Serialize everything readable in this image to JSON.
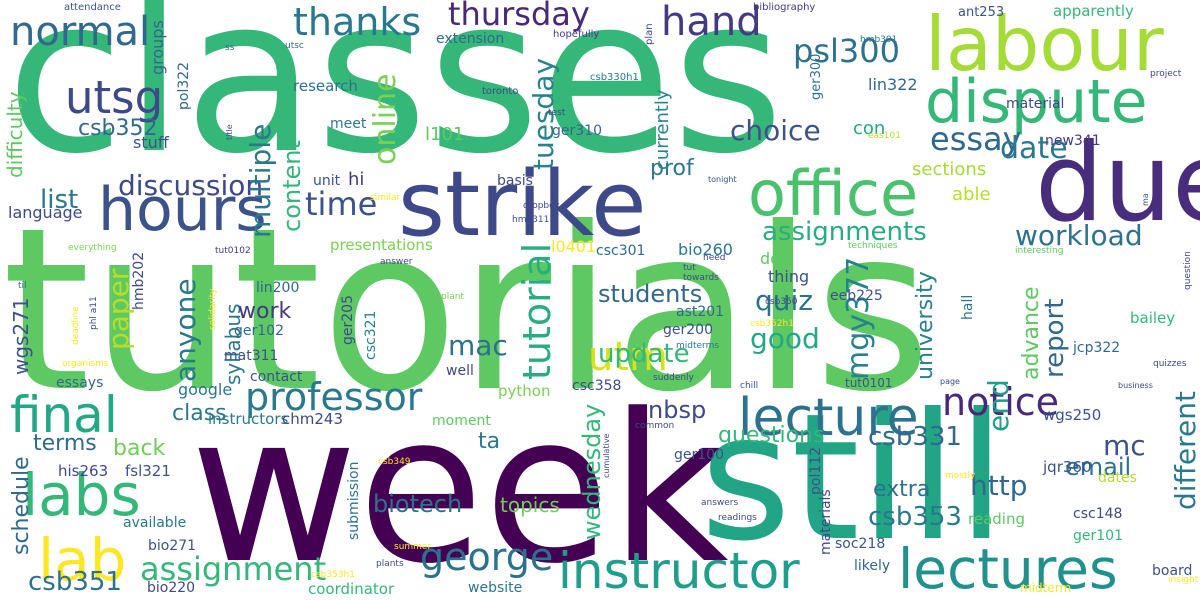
{
  "wordcloud": {
    "palette": [
      "#440154",
      "#482878",
      "#3e4989",
      "#31688e",
      "#26828e",
      "#1f9e89",
      "#35b779",
      "#6ece58",
      "#b5de2b",
      "#fde725"
    ],
    "words": [
      {
        "text": "classes",
        "color": "#35b779"
      },
      {
        "text": "tutorials",
        "color": "#5ec962"
      },
      {
        "text": "week",
        "color": "#440154"
      },
      {
        "text": "still",
        "color": "#21a585"
      },
      {
        "text": "strike",
        "color": "#3e4989"
      },
      {
        "text": "due",
        "color": "#472d7b"
      },
      {
        "text": "labour",
        "color": "#a5db36"
      },
      {
        "text": "dispute",
        "color": "#35b779"
      },
      {
        "text": "office",
        "color": "#4ac16d"
      },
      {
        "text": "hours",
        "color": "#3b528b"
      },
      {
        "text": "lecture",
        "color": "#2c728e"
      },
      {
        "text": "lectures",
        "color": "#21918c"
      },
      {
        "text": "instructor",
        "color": "#1f9e89"
      },
      {
        "text": "labs",
        "color": "#35b779"
      },
      {
        "text": "lab",
        "color": "#fde725"
      },
      {
        "text": "final",
        "color": "#22a884"
      },
      {
        "text": "normal",
        "color": "#31688e"
      },
      {
        "text": "utsg",
        "color": "#3e4989"
      },
      {
        "text": "thursday",
        "color": "#482878"
      },
      {
        "text": "thanks",
        "color": "#2a788e"
      },
      {
        "text": "hand",
        "color": "#443983"
      },
      {
        "text": "psl300",
        "color": "#2c728e"
      },
      {
        "text": "professor",
        "color": "#2a788e"
      },
      {
        "text": "george",
        "color": "#2c728e"
      },
      {
        "text": "assignment",
        "color": "#35b779"
      },
      {
        "text": "notice",
        "color": "#482878"
      },
      {
        "text": "choice",
        "color": "#3b528b"
      },
      {
        "text": "essay",
        "color": "#31688e"
      },
      {
        "text": "date",
        "color": "#2a788e"
      },
      {
        "text": "online",
        "color": "#7ad151"
      },
      {
        "text": "tuesday",
        "color": "#26828e"
      },
      {
        "text": "tutorial",
        "color": "#27ad81"
      },
      {
        "text": "utm",
        "color": "#d8e219"
      },
      {
        "text": "discussion",
        "color": "#3e4989"
      },
      {
        "text": "multiple",
        "color": "#2a788e"
      },
      {
        "text": "content",
        "color": "#35b779"
      },
      {
        "text": "time",
        "color": "#3b528b"
      },
      {
        "text": "assignments",
        "color": "#27ad81"
      },
      {
        "text": "workload",
        "color": "#2c728e"
      },
      {
        "text": "anyone",
        "color": "#2a788e"
      },
      {
        "text": "paper",
        "color": "#b5de2b"
      },
      {
        "text": "mac",
        "color": "#2c728e"
      },
      {
        "text": "quiz",
        "color": "#2c728e"
      },
      {
        "text": "good",
        "color": "#22a884"
      },
      {
        "text": "update",
        "color": "#35b779"
      },
      {
        "text": "students",
        "color": "#31688e"
      },
      {
        "text": "report",
        "color": "#31688e"
      },
      {
        "text": "mgy377",
        "color": "#26828e"
      },
      {
        "text": "university",
        "color": "#26828e"
      },
      {
        "text": "advance",
        "color": "#5ec962"
      },
      {
        "text": "end",
        "color": "#1f9e89"
      },
      {
        "text": "different",
        "color": "#2a788e"
      },
      {
        "text": "csb352",
        "color": "#31688e"
      },
      {
        "text": "list",
        "color": "#2a788e"
      },
      {
        "text": "csb331",
        "color": "#31688e"
      },
      {
        "text": "csb353",
        "color": "#2a788e"
      },
      {
        "text": "csb351",
        "color": "#2c728e"
      },
      {
        "text": "http",
        "color": "#31688e"
      },
      {
        "text": "email",
        "color": "#2c728e"
      },
      {
        "text": "extra",
        "color": "#2c728e"
      },
      {
        "text": "mc",
        "color": "#3b528b"
      },
      {
        "text": "wednesday",
        "color": "#35b779"
      },
      {
        "text": "questions",
        "color": "#35b779"
      },
      {
        "text": "nbsp",
        "color": "#3e4989"
      },
      {
        "text": "ta",
        "color": "#2a788e"
      },
      {
        "text": "biotech",
        "color": "#2c728e"
      },
      {
        "text": "topics",
        "color": "#6ece58"
      },
      {
        "text": "schedule",
        "color": "#31688e"
      },
      {
        "text": "terms",
        "color": "#31688e"
      },
      {
        "text": "back",
        "color": "#6ece58"
      },
      {
        "text": "class",
        "color": "#2a788e"
      },
      {
        "text": "syllabus",
        "color": "#2a788e"
      },
      {
        "text": "work",
        "color": "#443983"
      },
      {
        "text": "difficulty",
        "color": "#5ec962"
      },
      {
        "text": "wgs271",
        "color": "#3b528b"
      },
      {
        "text": "language",
        "color": "#3e4989"
      },
      {
        "text": "sections",
        "color": "#a5db36"
      },
      {
        "text": "prof",
        "color": "#2a788e"
      },
      {
        "text": "currently",
        "color": "#26828e"
      },
      {
        "text": "able",
        "color": "#b5de2b"
      },
      {
        "text": "con",
        "color": "#22a884"
      },
      {
        "text": "new341",
        "color": "#443983"
      },
      {
        "text": "lin322",
        "color": "#31688e"
      },
      {
        "text": "ger310",
        "color": "#31688e"
      },
      {
        "text": "l101",
        "color": "#5ec962"
      },
      {
        "text": "groups",
        "color": "#31688e"
      },
      {
        "text": "pol322",
        "color": "#31688e"
      },
      {
        "text": "research",
        "color": "#2c728e"
      },
      {
        "text": "meet",
        "color": "#2a788e"
      },
      {
        "text": "stuff",
        "color": "#3b528b"
      },
      {
        "text": "unit",
        "color": "#3b528b"
      },
      {
        "text": "hi",
        "color": "#443983"
      },
      {
        "text": "extension",
        "color": "#31688e"
      },
      {
        "text": "basis",
        "color": "#3e4989"
      },
      {
        "text": "doc",
        "color": "#5ec962"
      },
      {
        "text": "thing",
        "color": "#3b528b"
      },
      {
        "text": "hall",
        "color": "#2c728e"
      },
      {
        "text": "eeb225",
        "color": "#3b528b"
      },
      {
        "text": "ast201",
        "color": "#31688e"
      },
      {
        "text": "ger200",
        "color": "#3b528b"
      },
      {
        "text": "bio260",
        "color": "#2a788e"
      },
      {
        "text": "csc301",
        "color": "#31688e"
      },
      {
        "text": "l0401",
        "color": "#fde725"
      },
      {
        "text": "presentations",
        "color": "#7ad151"
      },
      {
        "text": "lin200",
        "color": "#31688e"
      },
      {
        "text": "hmb202",
        "color": "#3e4989"
      },
      {
        "text": "ger102",
        "color": "#31688e"
      },
      {
        "text": "mat311",
        "color": "#3b528b"
      },
      {
        "text": "ger205",
        "color": "#3e4989"
      },
      {
        "text": "csc321",
        "color": "#26828e"
      },
      {
        "text": "contact",
        "color": "#3b528b"
      },
      {
        "text": "google",
        "color": "#2a788e"
      },
      {
        "text": "instructors",
        "color": "#2a788e"
      },
      {
        "text": "chm243",
        "color": "#3e4989"
      },
      {
        "text": "his263",
        "color": "#3e4989"
      },
      {
        "text": "fsl321",
        "color": "#3b528b"
      },
      {
        "text": "essays",
        "color": "#31688e"
      },
      {
        "text": "python",
        "color": "#7ad151"
      },
      {
        "text": "moment",
        "color": "#5ec962"
      },
      {
        "text": "well",
        "color": "#3e4989"
      },
      {
        "text": "csc358",
        "color": "#3e4989"
      },
      {
        "text": "tut0101",
        "color": "#3b528b"
      },
      {
        "text": "wgs250",
        "color": "#3b528b"
      },
      {
        "text": "jcp322",
        "color": "#31688e"
      },
      {
        "text": "jqr360",
        "color": "#3b528b"
      },
      {
        "text": "bailey",
        "color": "#35b779"
      },
      {
        "text": "dates",
        "color": "#b5de2b"
      },
      {
        "text": "csc148",
        "color": "#3e4989"
      },
      {
        "text": "ger101",
        "color": "#35b779"
      },
      {
        "text": "reading",
        "color": "#5ec962"
      },
      {
        "text": "board",
        "color": "#3b528b"
      },
      {
        "text": "ger100",
        "color": "#3b528b"
      },
      {
        "text": "pol112",
        "color": "#3b528b"
      },
      {
        "text": "materials",
        "color": "#3e4989"
      },
      {
        "text": "likely",
        "color": "#31688e"
      },
      {
        "text": "soc218",
        "color": "#3b528b"
      },
      {
        "text": "submission",
        "color": "#2c728e"
      },
      {
        "text": "available",
        "color": "#2a788e"
      },
      {
        "text": "bio271",
        "color": "#3b528b"
      },
      {
        "text": "bio220",
        "color": "#3e4989"
      },
      {
        "text": "coordinator",
        "color": "#35b779"
      },
      {
        "text": "website",
        "color": "#2a788e"
      },
      {
        "text": "midterm",
        "color": "#fde725"
      },
      {
        "text": "material",
        "color": "#3e4989"
      },
      {
        "text": "apparently",
        "color": "#35b779"
      },
      {
        "text": "ant253",
        "color": "#3b528b"
      },
      {
        "text": "bibliography",
        "color": "#443983"
      },
      {
        "text": "attendance",
        "color": "#3b528b"
      },
      {
        "text": "hopefully",
        "color": "#443983"
      },
      {
        "text": "plan",
        "color": "#3e4989"
      },
      {
        "text": "csb330h1",
        "color": "#2a788e"
      },
      {
        "text": "ger300",
        "color": "#2c728e"
      },
      {
        "text": "hmb301",
        "color": "#2c728e"
      },
      {
        "text": "project",
        "color": "#3e4989"
      },
      {
        "text": "midterms",
        "color": "#2a788e"
      },
      {
        "text": "similar",
        "color": "#fde725"
      },
      {
        "text": "toronto",
        "color": "#3e4989"
      },
      {
        "text": "test",
        "color": "#3e4989"
      },
      {
        "text": "eas101",
        "color": "#b5de2b"
      },
      {
        "text": "title",
        "color": "#3e4989"
      },
      {
        "text": "ss",
        "color": "#31688e"
      },
      {
        "text": "utsc",
        "color": "#31688e"
      },
      {
        "text": "tonight",
        "color": "#3b528b"
      },
      {
        "text": "dropbox",
        "color": "#3e4989"
      },
      {
        "text": "hmb311",
        "color": "#3e4989"
      },
      {
        "text": "everything",
        "color": "#7ad151"
      },
      {
        "text": "tut0102",
        "color": "#443983"
      },
      {
        "text": "techniques",
        "color": "#5ec962"
      },
      {
        "text": "interesting",
        "color": "#5ec962"
      },
      {
        "text": "question",
        "color": "#3e4989"
      },
      {
        "text": "til",
        "color": "#31688e"
      },
      {
        "text": "solidarity",
        "color": "#fde725"
      },
      {
        "text": "answer",
        "color": "#3e4989"
      },
      {
        "text": "tut",
        "color": "#3e4989"
      },
      {
        "text": "towards",
        "color": "#3e4989"
      },
      {
        "text": "csb350",
        "color": "#3e4989"
      },
      {
        "text": "csb352h1",
        "color": "#fde725"
      },
      {
        "text": "plant",
        "color": "#7ad151"
      },
      {
        "text": "organisms",
        "color": "#fde725"
      },
      {
        "text": "phl a11",
        "color": "#3e4989"
      },
      {
        "text": "deadline",
        "color": "#fde725"
      },
      {
        "text": "chill",
        "color": "#3b528b"
      },
      {
        "text": "suddenly",
        "color": "#3e4989"
      },
      {
        "text": "page",
        "color": "#3e4989"
      },
      {
        "text": "business",
        "color": "#3e4989"
      },
      {
        "text": "quizzes",
        "color": "#3e4989"
      },
      {
        "text": "common",
        "color": "#3e4989"
      },
      {
        "text": "cumulative",
        "color": "#3e4989"
      },
      {
        "text": "mostly",
        "color": "#fde725"
      },
      {
        "text": "csb349",
        "color": "#fde725"
      },
      {
        "text": "answers",
        "color": "#3e4989"
      },
      {
        "text": "readings",
        "color": "#3e4989"
      },
      {
        "text": "summer",
        "color": "#fde725"
      },
      {
        "text": "csb353h1",
        "color": "#fde725"
      },
      {
        "text": "plants",
        "color": "#3e4989"
      },
      {
        "text": "insight",
        "color": "#fde725"
      },
      {
        "text": "need",
        "color": "#3e4989"
      },
      {
        "text": "ma",
        "color": "#3e4989"
      }
    ]
  }
}
